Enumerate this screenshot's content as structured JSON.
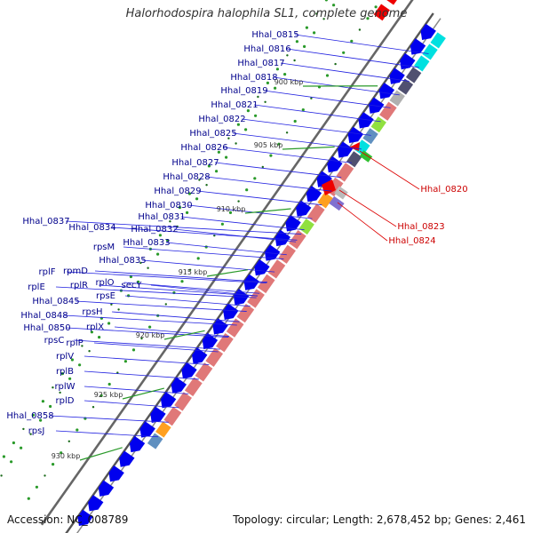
{
  "title": "Halorhodospira halophila SL1, complete genome",
  "footer": {
    "accession_label": "Accession:",
    "accession_value": "NC_008789",
    "topology_label": "Topology:",
    "topology_value": "circular",
    "length_label": "Length:",
    "length_value": "2,678,452 bp",
    "genes_label": "Genes:",
    "genes_value": "2,461"
  },
  "colors": {
    "backbone": "#777777",
    "forward_gene": "#0000ee",
    "reverse_gene": "#ee0000",
    "label_forward": "#00008b",
    "label_reverse": "#cc0000",
    "cog_palette": [
      "#00e0e0",
      "#e07878",
      "#ffa020",
      "#90e040",
      "#6090c0",
      "#505070",
      "#b0b0b0",
      "#9070d0",
      "#30b030"
    ]
  },
  "kbp_ticks": [
    "900 kbp",
    "905 kbp",
    "910 kbp",
    "915 kbp",
    "920 kbp",
    "925 kbp",
    "930 kbp"
  ],
  "forward_gene_labels": [
    "Hhal_0815",
    "Hhal_0816",
    "Hhal_0817",
    "Hhal_0818",
    "Hhal_0819",
    "Hhal_0821",
    "Hhal_0822",
    "Hhal_0825",
    "Hhal_0826",
    "Hhal_0827",
    "Hhal_0828",
    "Hhal_0829",
    "Hhal_0830",
    "Hhal_0831",
    "Hhal_0832",
    "Hhal_0833",
    "Hhal_0834",
    "Hhal_0837",
    "rpsM",
    "Hhal_0835",
    "secY",
    "rplO",
    "rpmD",
    "rplF",
    "rpsE",
    "rplR",
    "rplE",
    "Hhal_0845",
    "rpsH",
    "Hhal_0848",
    "rplX",
    "Hhal_0850",
    "rpsC",
    "rplP",
    "rplV",
    "rplB",
    "rplW",
    "rplD",
    "Hhal_0858",
    "rpsJ"
  ],
  "reverse_gene_labels": [
    "Hhal_0820",
    "Hhal_0823",
    "Hhal_0824"
  ]
}
